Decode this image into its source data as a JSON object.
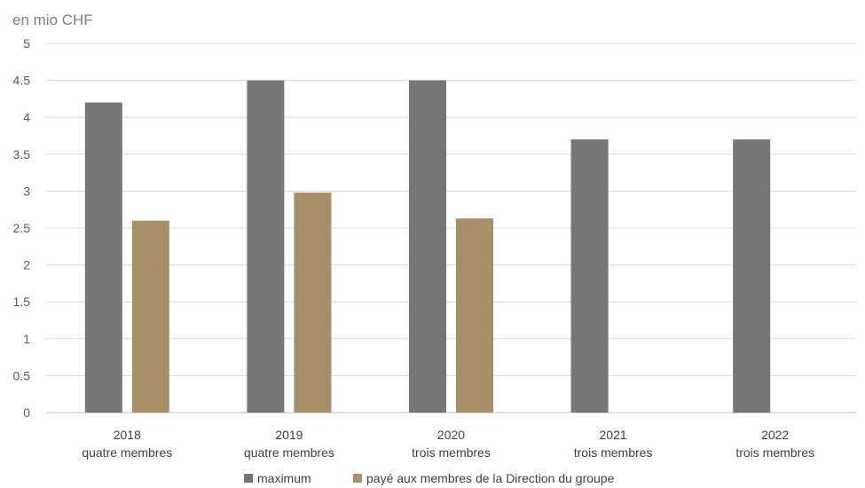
{
  "chart_data": {
    "type": "bar",
    "unit_label": "en mio CHF",
    "categories": [
      [
        "2018",
        "quatre membres"
      ],
      [
        "2019",
        "quatre membres"
      ],
      [
        "2020",
        "trois membres"
      ],
      [
        "2021",
        "trois membres"
      ],
      [
        "2022",
        "trois membres"
      ]
    ],
    "series": [
      {
        "name": "maximum",
        "color": "#767676",
        "values": [
          4.2,
          4.5,
          4.5,
          3.7,
          3.7
        ]
      },
      {
        "name": "payé aux membres de la Direction du groupe",
        "color": "#a78f68",
        "values": [
          2.6,
          2.98,
          2.63,
          null,
          null
        ]
      }
    ],
    "ylim": [
      0,
      5
    ],
    "yticks": [
      "0",
      "0.5",
      "1",
      "1.5",
      "2",
      "2.5",
      "3",
      "3.5",
      "4",
      "4.5",
      "5"
    ],
    "grid": true,
    "legend_position": "bottom"
  }
}
